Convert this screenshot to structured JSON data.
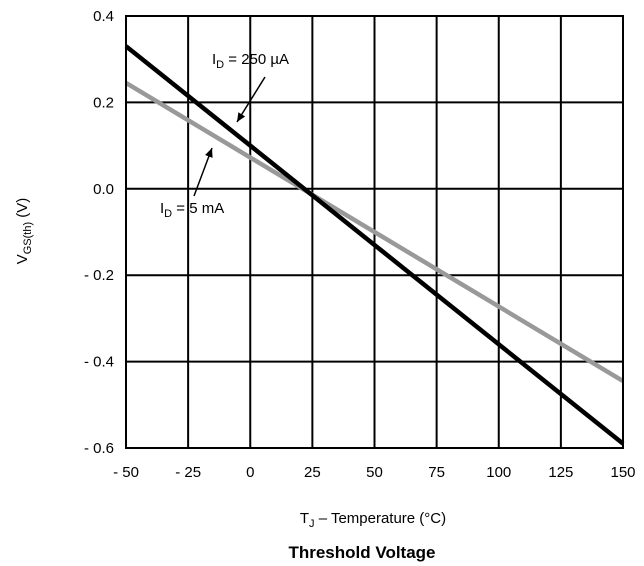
{
  "chart_data": {
    "type": "line",
    "title": "Threshold Voltage",
    "xlabel": {
      "main": "T",
      "sub": "J",
      "rest": " – Temperature (°C)"
    },
    "ylabel": {
      "main": "V",
      "sub": "GS(th)",
      "rest": " (V)"
    },
    "xlim": [
      -50,
      150
    ],
    "ylim": [
      -0.6,
      0.4
    ],
    "x_ticks": [
      -50,
      -25,
      0,
      25,
      50,
      75,
      100,
      125,
      150
    ],
    "x_tick_labels": [
      "- 50",
      "- 25",
      "0",
      "25",
      "50",
      "75",
      "100",
      "125",
      "150"
    ],
    "y_ticks": [
      0.4,
      0.2,
      0.0,
      -0.2,
      -0.4,
      -0.6
    ],
    "y_tick_labels": [
      "0.4",
      "0.2",
      "0.0",
      "- 0.2",
      "- 0.4",
      "- 0.6"
    ],
    "grid": true,
    "series": [
      {
        "name": "I_D = 250 µA",
        "x": [
          -50,
          150
        ],
        "y": [
          0.33,
          -0.59
        ],
        "color": "#000000"
      },
      {
        "name": "I_D = 5 mA",
        "x": [
          -50,
          150
        ],
        "y": [
          0.245,
          -0.445
        ],
        "color": "#999999"
      }
    ],
    "annotations": [
      {
        "main": "I",
        "sub": "D",
        "rest": " = 250 µA"
      },
      {
        "main": "I",
        "sub": "D",
        "rest": " = 5 mA"
      }
    ]
  }
}
